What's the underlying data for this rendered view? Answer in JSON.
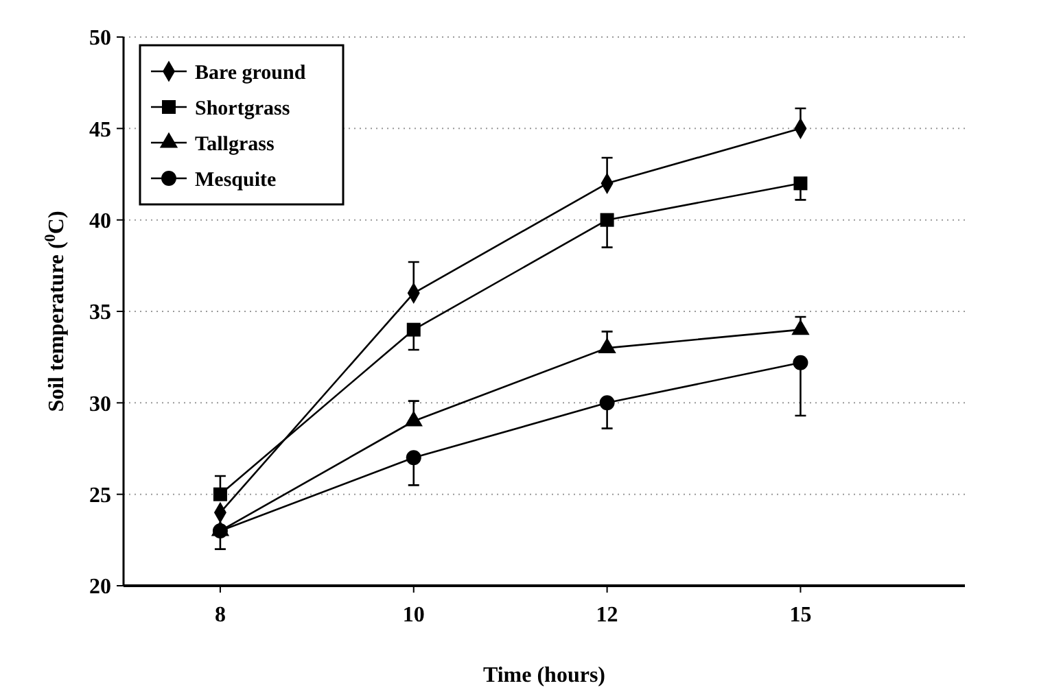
{
  "chart_data": {
    "type": "line",
    "xlabel": "Time (hours)",
    "ylabel": "Soil temperature ($^{0}$C)",
    "categories": [
      "8",
      "10",
      "12",
      "15"
    ],
    "ylim": [
      20,
      50
    ],
    "yticks": [
      20,
      25,
      30,
      35,
      40,
      45,
      50
    ],
    "grid": "y",
    "legend": "top left",
    "line_style": "solid",
    "series": [
      {
        "name": "Bare ground",
        "color": "#000000",
        "marker": "diamond",
        "values": [
          24,
          36,
          42,
          45
        ],
        "errors": [
          null,
          [
            36,
            37.7
          ],
          [
            42,
            43.4
          ],
          [
            45,
            46.1
          ]
        ]
      },
      {
        "name": "Shortgrass",
        "color": "#000000",
        "marker": "square",
        "values": [
          25,
          34,
          40,
          42
        ],
        "errors": [
          [
            25,
            26
          ],
          [
            32.9,
            34
          ],
          [
            38.5,
            40
          ],
          [
            41.1,
            42
          ]
        ]
      },
      {
        "name": "Tallgrass",
        "color": "#000000",
        "marker": "triangle",
        "values": [
          23,
          29,
          33,
          34
        ],
        "errors": [
          null,
          [
            29,
            30.1
          ],
          [
            33,
            33.9
          ],
          [
            34,
            34.7
          ]
        ]
      },
      {
        "name": "Mesquite",
        "color": "#000000",
        "marker": "circle",
        "values": [
          23,
          27,
          30,
          32.2
        ],
        "errors": [
          [
            22,
            23
          ],
          [
            25.5,
            27
          ],
          [
            28.6,
            30
          ],
          [
            29.3,
            32.2
          ]
        ]
      }
    ]
  }
}
